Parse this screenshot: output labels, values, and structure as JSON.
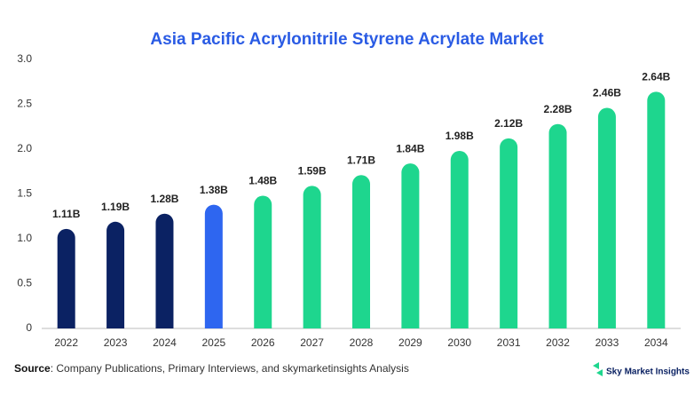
{
  "chart_data": {
    "type": "bar",
    "title": "Asia Pacific Acrylonitrile Styrene Acrylate Market",
    "categories": [
      "2022",
      "2023",
      "2024",
      "2025",
      "2026",
      "2027",
      "2028",
      "2029",
      "2030",
      "2031",
      "2032",
      "2033",
      "2034"
    ],
    "values": [
      1.11,
      1.19,
      1.28,
      1.38,
      1.48,
      1.59,
      1.71,
      1.84,
      1.98,
      2.12,
      2.28,
      2.46,
      2.64
    ],
    "value_labels": [
      "1.11B",
      "1.19B",
      "1.28B",
      "1.38B",
      "1.48B",
      "1.59B",
      "1.71B",
      "1.84B",
      "1.98B",
      "2.12B",
      "2.28B",
      "2.46B",
      "2.64B"
    ],
    "colors": [
      "#0b2263",
      "#0b2263",
      "#0b2263",
      "#2e66f0",
      "#1ed68e",
      "#1ed68e",
      "#1ed68e",
      "#1ed68e",
      "#1ed68e",
      "#1ed68e",
      "#1ed68e",
      "#1ed68e",
      "#1ed68e"
    ],
    "ylim": [
      0,
      3
    ],
    "yticks": [
      0,
      0.5,
      {
        "value": 1,
        "label": "1.0"
      },
      1.5,
      {
        "value": 2,
        "label": "2.0"
      },
      2.5,
      {
        "value": 3,
        "label": "3.0"
      }
    ],
    "grid": false
  },
  "footer": {
    "source_label": "Source",
    "source_text": ": Company Publications, Primary Interviews, and skymarketinsights Analysis",
    "brand": "Sky Market Insights"
  }
}
